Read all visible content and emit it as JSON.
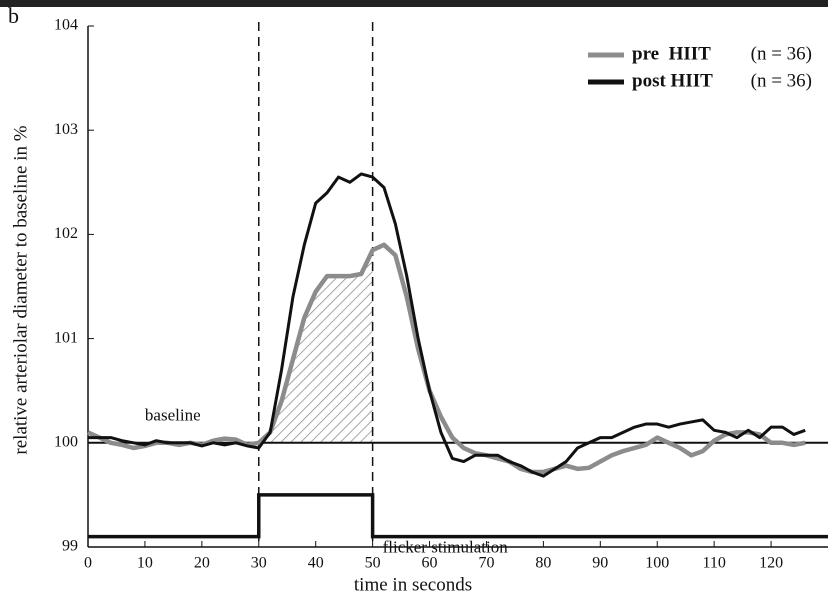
{
  "chart_data": {
    "type": "line",
    "panel_label": "b",
    "x_label": "time in seconds",
    "y_label": "relative arteriolar diameter to baseline in %",
    "xlim": [
      0,
      130
    ],
    "ylim": [
      99,
      104
    ],
    "xticks": [
      0,
      10,
      20,
      30,
      40,
      50,
      60,
      70,
      80,
      90,
      100,
      110,
      120
    ],
    "yticks": [
      99,
      100,
      101,
      102,
      103,
      104
    ],
    "legend": "upper right",
    "baseline": {
      "label": "baseline",
      "value": 100
    },
    "stimulation": {
      "label": "flicker stimulation",
      "start": 30,
      "end": 50,
      "low": 99.1,
      "high": 99.5
    },
    "x": [
      0,
      2,
      4,
      6,
      8,
      10,
      12,
      14,
      16,
      18,
      20,
      22,
      24,
      26,
      28,
      30,
      32,
      34,
      36,
      38,
      40,
      42,
      44,
      46,
      48,
      50,
      52,
      54,
      56,
      58,
      60,
      62,
      64,
      66,
      68,
      70,
      72,
      74,
      76,
      78,
      80,
      82,
      84,
      86,
      88,
      90,
      92,
      94,
      96,
      98,
      100,
      102,
      104,
      106,
      108,
      110,
      112,
      114,
      116,
      118,
      120,
      122,
      124,
      126
    ],
    "series": [
      {
        "name": "pre  HIIT",
        "sample_label": "(n = 36)",
        "color": "#8c8c8c",
        "values": [
          100.1,
          100.05,
          100.0,
          99.98,
          99.95,
          99.97,
          100.0,
          100.0,
          99.98,
          100.0,
          99.98,
          100.02,
          100.04,
          100.03,
          99.98,
          100.0,
          100.1,
          100.4,
          100.8,
          101.2,
          101.45,
          101.6,
          101.6,
          101.6,
          101.62,
          101.85,
          101.9,
          101.8,
          101.4,
          100.9,
          100.5,
          100.25,
          100.05,
          99.95,
          99.9,
          99.88,
          99.85,
          99.82,
          99.75,
          99.72,
          99.72,
          99.75,
          99.78,
          99.75,
          99.76,
          99.82,
          99.88,
          99.92,
          99.95,
          99.98,
          100.05,
          100.0,
          99.95,
          99.88,
          99.92,
          100.02,
          100.08,
          100.1,
          100.1,
          100.08,
          100.0,
          100.0,
          99.98,
          100.0
        ]
      },
      {
        "name": "post HIIT",
        "sample_label": "(n = 36)",
        "color": "#111111",
        "values": [
          100.05,
          100.05,
          100.05,
          100.02,
          100.0,
          99.98,
          100.02,
          100.0,
          100.0,
          100.0,
          99.97,
          100.0,
          99.98,
          100.0,
          99.97,
          99.95,
          100.1,
          100.7,
          101.4,
          101.9,
          102.3,
          102.4,
          102.55,
          102.5,
          102.58,
          102.55,
          102.45,
          102.1,
          101.6,
          101.0,
          100.5,
          100.1,
          99.85,
          99.82,
          99.88,
          99.88,
          99.88,
          99.82,
          99.78,
          99.72,
          99.68,
          99.75,
          99.82,
          99.95,
          100.0,
          100.05,
          100.05,
          100.1,
          100.15,
          100.18,
          100.18,
          100.15,
          100.18,
          100.2,
          100.22,
          100.12,
          100.1,
          100.05,
          100.12,
          100.05,
          100.15,
          100.15,
          100.08,
          100.12
        ]
      }
    ]
  }
}
